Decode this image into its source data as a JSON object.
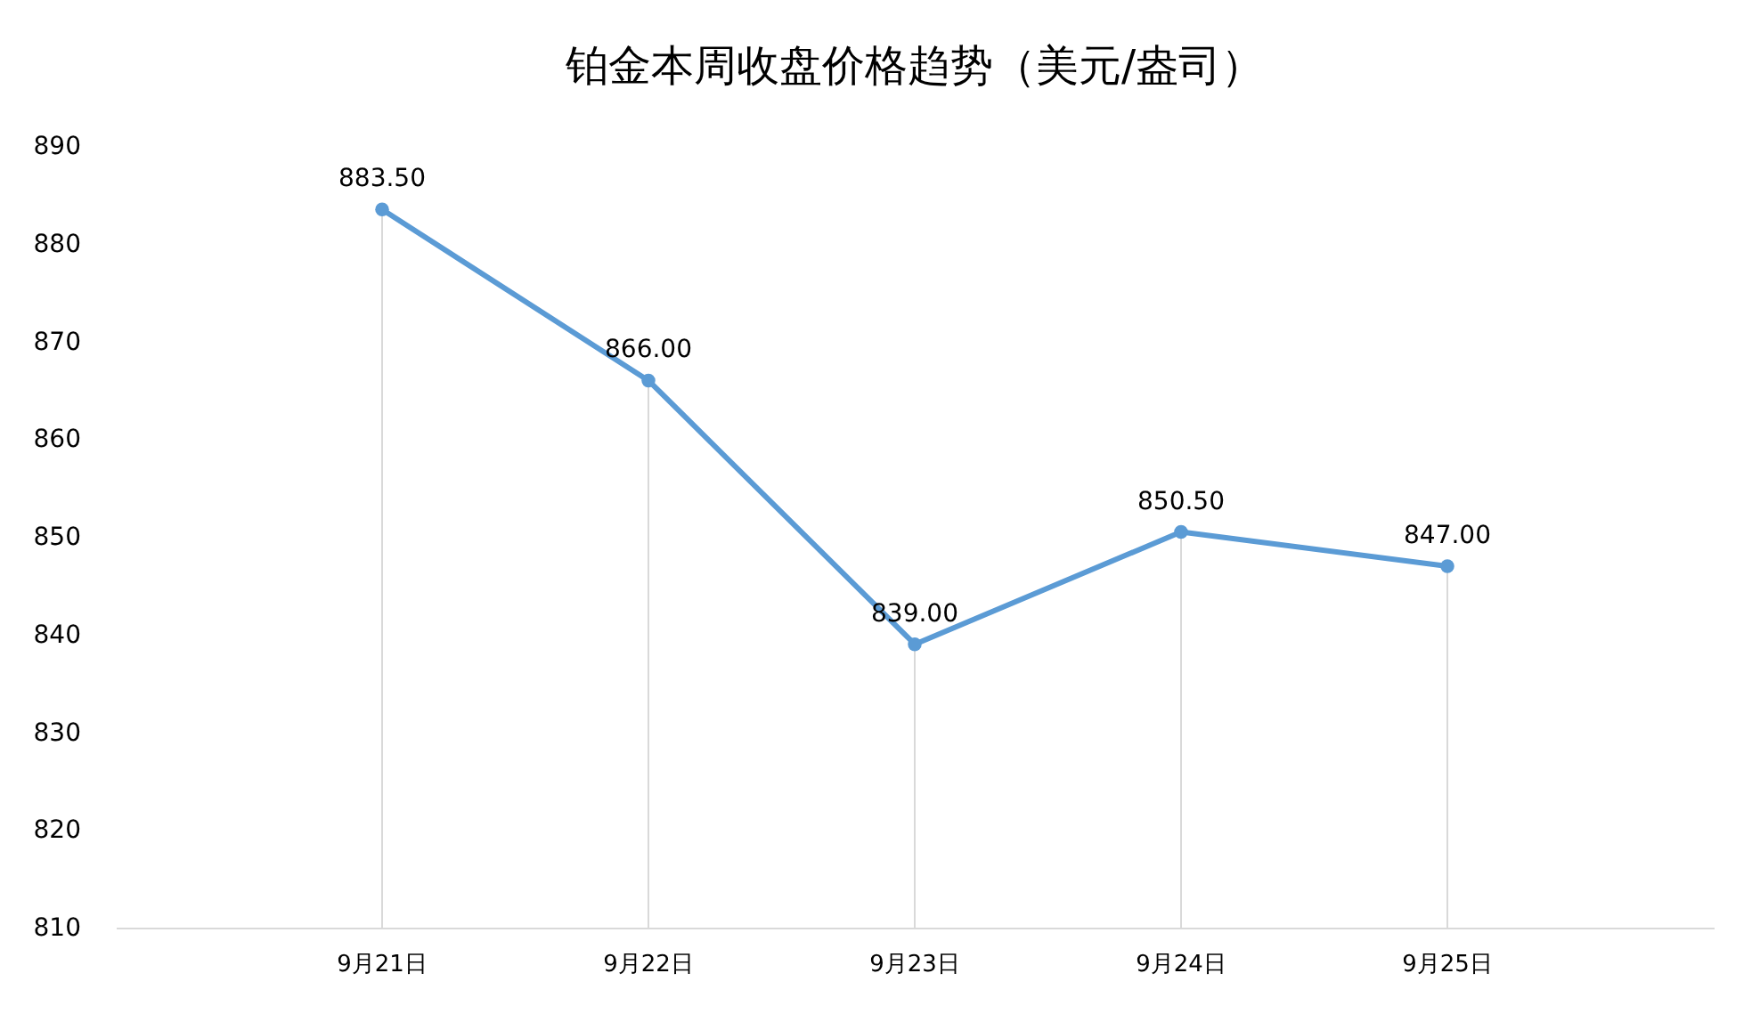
{
  "chart_data": {
    "type": "line",
    "title": "铂金本周收盘价格趋势（美元/盎司）",
    "categories": [
      "9月21日",
      "9月22日",
      "9月23日",
      "9月24日",
      "9月25日"
    ],
    "series": [
      {
        "color": "#5b9bd5",
        "values": [
          883.5,
          866.0,
          839.0,
          850.5,
          847.0
        ],
        "value_labels": [
          "883.50",
          "866.00",
          "839.00",
          "850.50",
          "847.00"
        ]
      }
    ],
    "ylim": [
      810,
      890
    ],
    "yticks": [
      810,
      820,
      830,
      840,
      850,
      860,
      870,
      880,
      890
    ],
    "marker": "circle"
  }
}
